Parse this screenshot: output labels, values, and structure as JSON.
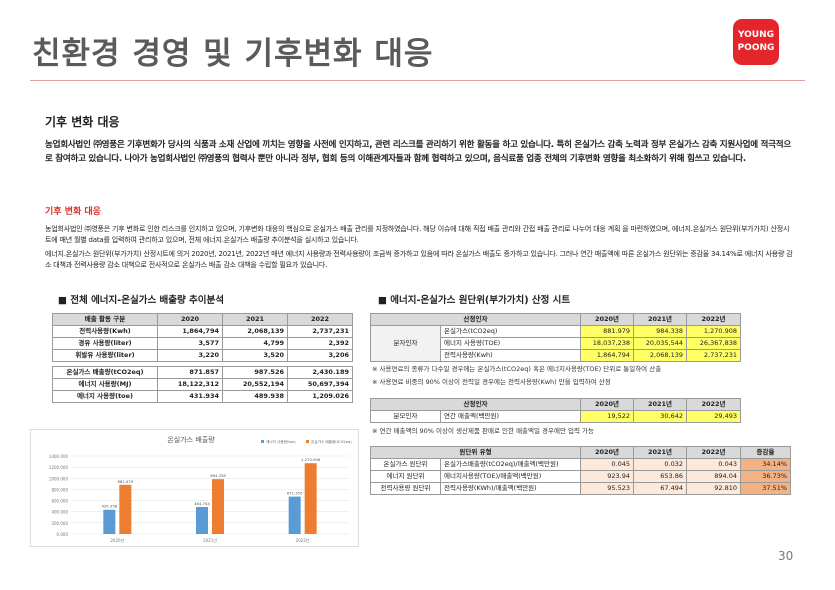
{
  "header": {
    "title": "친환경 경영 및 기후변화 대응",
    "logo": [
      "YOUNG",
      "POONG"
    ]
  },
  "section": {
    "heading": "기후 변화 대응",
    "intro": "농업회사법인 ㈜영풍은 기후변화가 당사의 식품과 소재 산업에 끼치는 영향을 사전에 인지하고, 관련 리스크를 관리하기 위한 활동을 하고 있습니다. 특히 온실가스 감축 노력과 정부 온실가스 감축 지원사업에 적극적으로 참여하고 있습니다. 나아가 농업회사법인 ㈜영풍의 협력사 뿐만 아니라 정부, 협회 등의 이해관계자들과 함께 협력하고 있으며, 음식료품 업종 전체의 기후변화 영향을 최소화하기 위해 힘쓰고 있습니다.",
    "subheading": "기후 변화 대응",
    "paragraphs": [
      "농업회사법인 ㈜영풍은 기후 변화로 인한 리스크를 인지하고 있으며, 기후변화 대응의 핵심으로 온실가스 배출 관리를 지정하였습니다. 해당 이슈에 대해 직접 배출 관리와 간접 배출 관리로 나누어 대응 계획 을 마련하였으며, 에너지.온실가스 원단위(부가가치) 산정시트에 매년 월별 data를 입력하여 관리하고 있으며, 전체 에너지.온실가스 배출량 추이분석을 실시하고 있습니다.",
      "에너지.온실가스 원단위(부가가치) 산정시트에 의거 2020년, 2021년, 2022년 매년 에너지 사용량과 전력사용량이 조금씩 증가하고 있음에 따라 온실가스 배출도 증가하고 있습니다. 그러나 연간 매출액에 따른 온실가스 원단위는 증감율 34.14%로 에너지 사용량 감소 대책과 전력사용량 감소 대책으로 전사적으로 온실가스 배출 감소 대책을 수립할 필요가 있습니다."
    ]
  },
  "left": {
    "heading": "■ 전체 에너지-온실가스 배출량 추이분석",
    "table": {
      "header": [
        "배출 활동 구분",
        "2020",
        "2021",
        "2022"
      ],
      "rows": [
        [
          "전력사용량(Kwh)",
          "1,864,794",
          "2,068,139",
          "2,737,231"
        ],
        [
          "경유 사용량(liter)",
          "3,577",
          "4,799",
          "2,392"
        ],
        [
          "휘발유 사용량(liter)",
          "3,220",
          "3,520",
          "3,206"
        ],
        [
          "온실가스 배출량(tCO2eq)",
          "871.857",
          "987.526",
          "2,430.189"
        ],
        [
          "에너지 사용량(MJ)",
          "18,122,312",
          "20,552,194",
          "50,697,394"
        ],
        [
          "에너지 사용량(toe)",
          "431.934",
          "489.938",
          "1,209.026"
        ]
      ]
    }
  },
  "chart_data": {
    "type": "bar",
    "title": "온실가스 배출량",
    "categories": [
      "2020년",
      "2021년",
      "2022년"
    ],
    "series": [
      {
        "name": "에너지 사용량(toe)",
        "color": "#5b9bd5",
        "values": [
          435.358,
          484.744,
          671.355
        ]
      },
      {
        "name": "온실가스 배출량(tCO2eq)",
        "color": "#ed7d31",
        "values": [
          881.979,
          984.338,
          1270.908
        ],
        "value_labels": [
          "881.979",
          "984.338",
          "1,270.908"
        ]
      }
    ],
    "ylim": [
      0,
      1400
    ],
    "yticks": [
      {
        "value": 0,
        "label": "0.000"
      },
      {
        "value": 200,
        "label": "200.000"
      },
      {
        "value": 400,
        "label": "400.000"
      },
      {
        "value": 600,
        "label": "600.000"
      },
      {
        "value": 800,
        "label": "800.000"
      },
      {
        "value": 1000,
        "label": "1000.000"
      },
      {
        "value": 1200,
        "label": "1200.000"
      },
      {
        "value": 1400,
        "label": "1400.000"
      }
    ]
  },
  "right": {
    "heading": "■ 에너지-온실가스 원단위(부가가치) 산정 시트",
    "table1": {
      "header": [
        "산정인자",
        "2020년",
        "2021년",
        "2022년"
      ],
      "group": "분자인자",
      "rows": [
        [
          "온실가스(tCO2eq)",
          "881.979",
          "984.338",
          "1,270.908"
        ],
        [
          "에너지 사용량(TOE)",
          "18,037,238",
          "20,035,544",
          "26,367,838"
        ],
        [
          "전력사용량(Kwh)",
          "1,864,794",
          "2,068,139",
          "2,737,231"
        ]
      ]
    },
    "notes1": [
      "※ 사용연료의 종류가 다수일 경우에는 온실가스(tCO2eq) 혹은 에너지사용량(TOE) 단위로 통일하여 산출",
      "※ 사용연료 비중의 90% 이상이 전력일 경우에는 전력사용량(Kwh) 만을 입력하여 산정"
    ],
    "table2": {
      "header": [
        "산정인자",
        "2020년",
        "2021년",
        "2022년"
      ],
      "rows": [
        [
          "분모인자",
          "연간 매출액(백만원)",
          "19,522",
          "30,642",
          "29,493"
        ]
      ]
    },
    "note2": "※ 연간 매출액의 90% 이상이 생산제품 판매로 인한 매출액일 경우에만 입력 가능",
    "table3": {
      "header": [
        "원단위 유형",
        "2020년",
        "2021년",
        "2022년",
        "증감율"
      ],
      "rows": [
        [
          "온실가스 원단위",
          "온실가스배출량(tCO2eq)/매출액(백만원)",
          "0.045",
          "0.032",
          "0.043",
          "34.14%"
        ],
        [
          "에너지 원단위",
          "에너지사용량(TOE)/매출액(백만원)",
          "923.94",
          "653.86",
          "894.04",
          "36.73%"
        ],
        [
          "전력사용량 원단위",
          "전력사용량(KWh)/매출액(백만원)",
          "95.523",
          "67.494",
          "92.810",
          "37.51%"
        ]
      ]
    }
  },
  "page_number": "30"
}
